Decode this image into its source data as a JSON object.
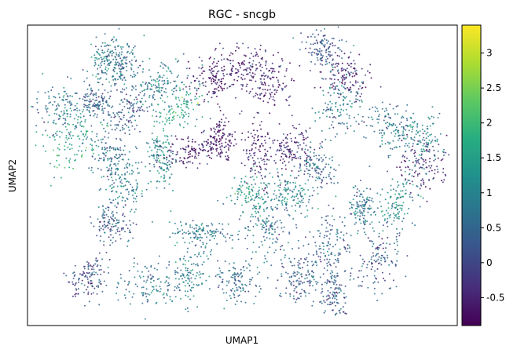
{
  "chart_data": {
    "type": "scatter",
    "title": "RGC - sncgb",
    "xlabel": "UMAP1",
    "ylabel": "UMAP2",
    "x_ticks_shown": false,
    "y_ticks_shown": false,
    "colormap": "viridis",
    "colorbar": {
      "range": [
        -0.9,
        3.4
      ],
      "ticks": [
        "-0.5",
        "0",
        "0.5",
        "1",
        "1.5",
        "2",
        "2.5",
        "3"
      ],
      "tick_values": [
        -0.5,
        0,
        0.5,
        1,
        1.5,
        2,
        2.5,
        3
      ]
    },
    "point_color_description": "expression value mapped to viridis colormap",
    "clusters": [
      {
        "x": 0.18,
        "y": 0.88,
        "value": 0.9
      },
      {
        "x": 0.22,
        "y": 0.86,
        "value": 0.6
      },
      {
        "x": 0.08,
        "y": 0.72,
        "value": 0.7
      },
      {
        "x": 0.16,
        "y": 0.74,
        "value": 0.4
      },
      {
        "x": 0.24,
        "y": 0.72,
        "value": 0.3
      },
      {
        "x": 0.31,
        "y": 0.81,
        "value": 0.9
      },
      {
        "x": 0.35,
        "y": 0.72,
        "value": 1.6
      },
      {
        "x": 0.43,
        "y": 0.82,
        "value": -0.7
      },
      {
        "x": 0.51,
        "y": 0.86,
        "value": -0.6
      },
      {
        "x": 0.56,
        "y": 0.8,
        "value": -0.5
      },
      {
        "x": 0.69,
        "y": 0.92,
        "value": 0.3
      },
      {
        "x": 0.74,
        "y": 0.83,
        "value": -0.6
      },
      {
        "x": 0.72,
        "y": 0.73,
        "value": 0.8
      },
      {
        "x": 0.84,
        "y": 0.66,
        "value": 0.7
      },
      {
        "x": 0.91,
        "y": 0.62,
        "value": 1.0
      },
      {
        "x": 0.92,
        "y": 0.53,
        "value": -0.4
      },
      {
        "x": 0.1,
        "y": 0.62,
        "value": 1.5
      },
      {
        "x": 0.19,
        "y": 0.57,
        "value": 0.6
      },
      {
        "x": 0.23,
        "y": 0.47,
        "value": 0.9
      },
      {
        "x": 0.2,
        "y": 0.34,
        "value": 0.3
      },
      {
        "x": 0.31,
        "y": 0.56,
        "value": 1.1
      },
      {
        "x": 0.38,
        "y": 0.58,
        "value": -0.6
      },
      {
        "x": 0.45,
        "y": 0.62,
        "value": -0.7
      },
      {
        "x": 0.54,
        "y": 0.57,
        "value": -0.5
      },
      {
        "x": 0.61,
        "y": 0.59,
        "value": -0.5
      },
      {
        "x": 0.67,
        "y": 0.53,
        "value": 0.5
      },
      {
        "x": 0.52,
        "y": 0.43,
        "value": 1.3
      },
      {
        "x": 0.61,
        "y": 0.44,
        "value": 1.0
      },
      {
        "x": 0.78,
        "y": 0.39,
        "value": 0.8
      },
      {
        "x": 0.86,
        "y": 0.4,
        "value": 1.2
      },
      {
        "x": 0.41,
        "y": 0.31,
        "value": 0.9
      },
      {
        "x": 0.56,
        "y": 0.32,
        "value": 0.6
      },
      {
        "x": 0.7,
        "y": 0.28,
        "value": 0.4
      },
      {
        "x": 0.82,
        "y": 0.22,
        "value": 0.2
      },
      {
        "x": 0.14,
        "y": 0.16,
        "value": 0.1
      },
      {
        "x": 0.28,
        "y": 0.14,
        "value": 0.8
      },
      {
        "x": 0.38,
        "y": 0.18,
        "value": 0.9
      },
      {
        "x": 0.49,
        "y": 0.15,
        "value": 0.5
      },
      {
        "x": 0.63,
        "y": 0.16,
        "value": 0.4
      },
      {
        "x": 0.71,
        "y": 0.12,
        "value": 0.3
      }
    ]
  }
}
